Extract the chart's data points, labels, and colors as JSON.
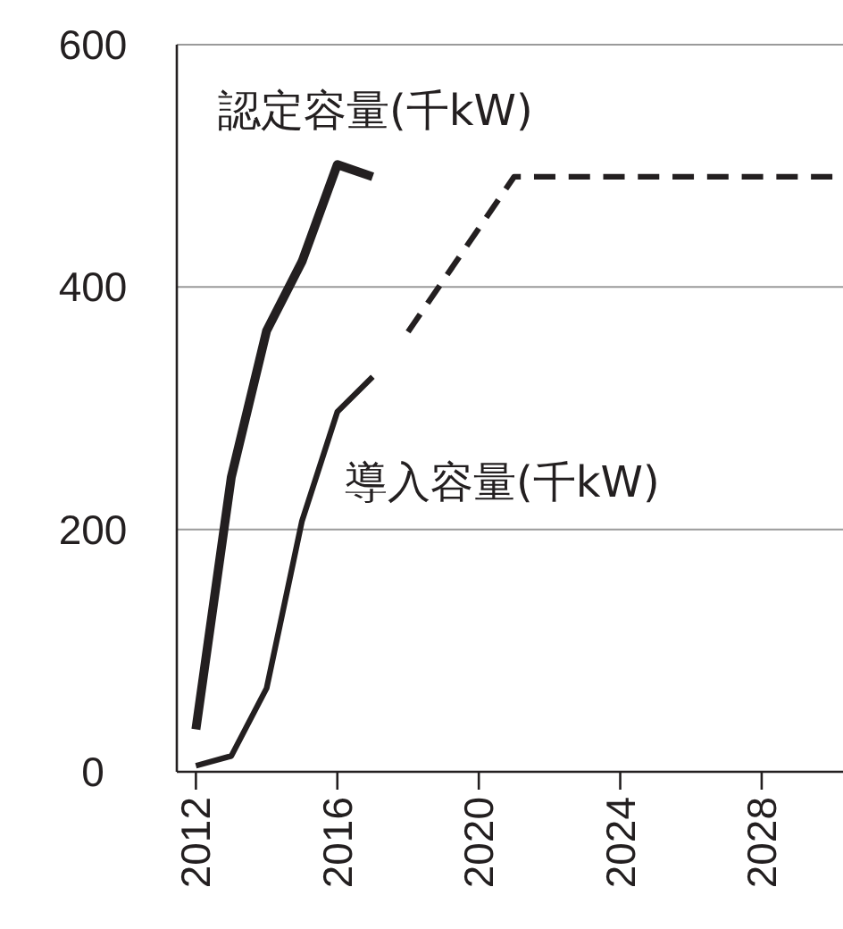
{
  "chart_data": {
    "type": "line",
    "x": [
      2012,
      2013,
      2014,
      2015,
      2016,
      2017
    ],
    "series": [
      {
        "name": "認定容量(千kW)",
        "color": "#231f20",
        "values": [
          35,
          243,
          364,
          421,
          501,
          491
        ]
      },
      {
        "name": "導入容量(千kW)",
        "color": "#231f20",
        "values": [
          5,
          13,
          69,
          207,
          297,
          326
        ]
      },
      {
        "color": "#231f20",
        "x": [
          2018,
          2021,
          2030
        ],
        "values": [
          363,
          491,
          491
        ],
        "line_style": "dashed"
      }
    ],
    "xlim": [
      2011.46,
      2030.3
    ],
    "ylim": [
      0,
      600
    ],
    "xticks": [
      2012,
      2016,
      2020,
      2024,
      2028
    ],
    "yticks": [
      0,
      200,
      400,
      600
    ],
    "grid": "y",
    "legend": false
  }
}
